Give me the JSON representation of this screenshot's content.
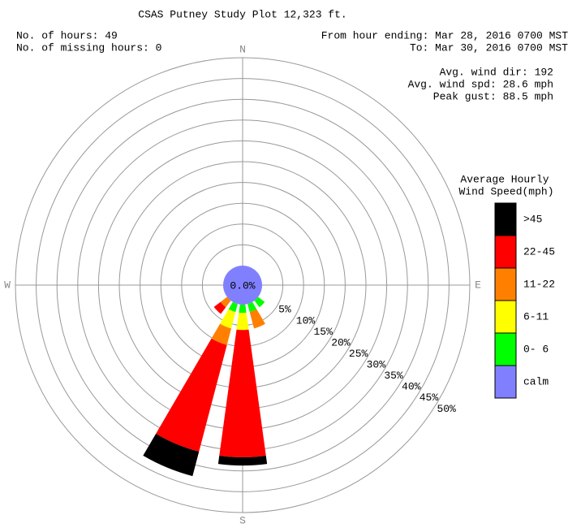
{
  "chart_data": {
    "type": "windrose",
    "title": "CSAS Putney Study Plot 12,323 ft.",
    "info_left": [
      "No. of hours: 49",
      "No. of missing hours: 0"
    ],
    "info_right": [
      "From hour ending: Mar 28, 2016 0700 MST",
      "To: Mar 30, 2016 0700 MST"
    ],
    "stats": [
      "Avg. wind dir: 192",
      "Avg. wind spd: 28.6 mph",
      "Peak gust: 88.5 mph"
    ],
    "legend_title": [
      "Average Hourly",
      "Wind Speed(mph)"
    ],
    "compass_labels": [
      "N",
      "E",
      "S",
      "W"
    ],
    "x": [
      0,
      22.5,
      45,
      67.5,
      90,
      112.5,
      135,
      157.5,
      180,
      202.5,
      225,
      247.5,
      270,
      292.5,
      315,
      337.5
    ],
    "series": [
      {
        "name": "0- 6",
        "color": "#00ff00",
        "values": [
          0,
          0,
          0,
          0,
          0,
          0,
          2.0,
          2.0,
          2.0,
          2.0,
          0,
          0,
          0,
          0,
          0,
          0
        ]
      },
      {
        "name": "6-11",
        "color": "#ffff00",
        "values": [
          0,
          0,
          0,
          0,
          0,
          0,
          0,
          0,
          4.1,
          4.1,
          0,
          0,
          0,
          0,
          0,
          0
        ]
      },
      {
        "name": "11-22",
        "color": "#ff8000",
        "values": [
          0,
          0,
          0,
          0,
          0,
          0,
          0,
          4.1,
          0,
          4.1,
          2.0,
          0,
          0,
          0,
          0,
          0
        ]
      },
      {
        "name": "22-45",
        "color": "#ff0000",
        "values": [
          0,
          0,
          0,
          0,
          0,
          0,
          0,
          0,
          30.6,
          26.5,
          2.0,
          0,
          0,
          0,
          0,
          0
        ]
      },
      {
        "name": ">45",
        "color": "#000000",
        "values": [
          0,
          0,
          0,
          0,
          0,
          0,
          0,
          0,
          2.0,
          6.1,
          0,
          0,
          0,
          0,
          0,
          0
        ]
      }
    ],
    "calm": {
      "name": "calm",
      "color": "#8080ff",
      "value": 0,
      "value_label": "0.0%"
    },
    "rlim": [
      0,
      50
    ],
    "rticks": [
      {
        "value": 5,
        "label": "5%"
      },
      {
        "value": 10,
        "label": "10%"
      },
      {
        "value": 15,
        "label": "15%"
      },
      {
        "value": 20,
        "label": "20%"
      },
      {
        "value": 25,
        "label": "25%"
      },
      {
        "value": 30,
        "label": "30%"
      },
      {
        "value": 35,
        "label": "35%"
      },
      {
        "value": 40,
        "label": "40%"
      },
      {
        "value": 45,
        "label": "45%"
      },
      {
        "value": 50,
        "label": "50%"
      }
    ]
  }
}
